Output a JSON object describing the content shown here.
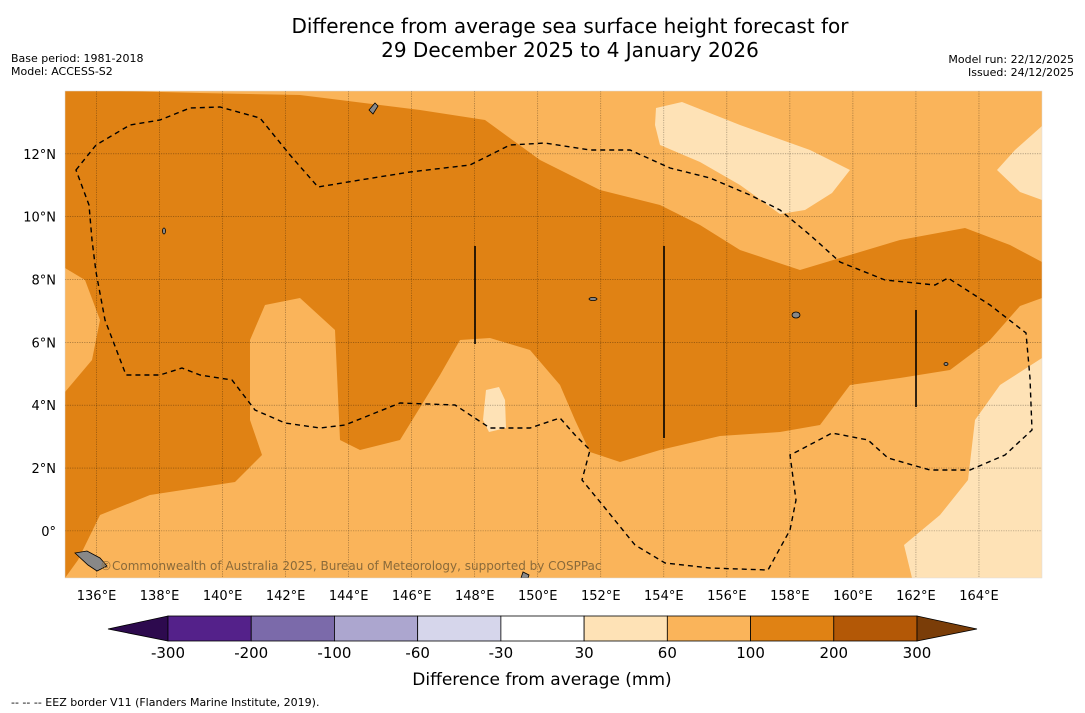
{
  "title_line1": "Difference from average sea surface height forecast for",
  "title_line2": "29 December 2025 to 4 January 2026",
  "base_period": "Base period: 1981-2018",
  "model": "Model: ACCESS-S2",
  "model_run": "Model run: 22/12/2025",
  "issued": "Issued: 24/12/2025",
  "attribution": "©Commonwealth of Australia 2025, Bureau of Meteorology, supported by COSPPac",
  "footer_note": "--  --  -- EEZ border V11 (Flanders Marine Institute, 2019).",
  "map_extent": {
    "lon_min": 135,
    "lon_max": 166,
    "lat_min": -1.5,
    "lat_max": 14
  },
  "lat_labels": [
    {
      "lat": 12,
      "label": "12°N"
    },
    {
      "lat": 10,
      "label": "10°N"
    },
    {
      "lat": 8,
      "label": "8°N"
    },
    {
      "lat": 6,
      "label": "6°N"
    },
    {
      "lat": 4,
      "label": "4°N"
    },
    {
      "lat": 2,
      "label": "2°N"
    },
    {
      "lat": 0,
      "label": "0°"
    }
  ],
  "lon_labels": [
    {
      "lon": 136,
      "label": "136°E"
    },
    {
      "lon": 138,
      "label": "138°E"
    },
    {
      "lon": 140,
      "label": "140°E"
    },
    {
      "lon": 142,
      "label": "142°E"
    },
    {
      "lon": 144,
      "label": "144°E"
    },
    {
      "lon": 146,
      "label": "146°E"
    },
    {
      "lon": 148,
      "label": "148°E"
    },
    {
      "lon": 150,
      "label": "150°E"
    },
    {
      "lon": 152,
      "label": "152°E"
    },
    {
      "lon": 154,
      "label": "154°E"
    },
    {
      "lon": 156,
      "label": "156°E"
    },
    {
      "lon": 158,
      "label": "158°E"
    },
    {
      "lon": 160,
      "label": "160°E"
    },
    {
      "lon": 162,
      "label": "162°E"
    },
    {
      "lon": 164,
      "label": "164°E"
    }
  ],
  "colorbar": {
    "title": "Difference from average (mm)",
    "tick_labels": [
      "-300",
      "-200",
      "-100",
      "-60",
      "-30",
      "30",
      "60",
      "100",
      "200",
      "300"
    ],
    "under_color": "#2d0a4e",
    "over_color": "#7a3d08",
    "colors": [
      "#54218a",
      "#7b6aaa",
      "#aca6cf",
      "#d6d6eb",
      "#ffffff",
      "#fee2b6",
      "#fab45a",
      "#e08214",
      "#b35806"
    ]
  },
  "colors": {
    "band_30_60": "#fee2b6",
    "band_60_100": "#fab45a",
    "band_100_200": "#e08214",
    "land": "#888888"
  }
}
